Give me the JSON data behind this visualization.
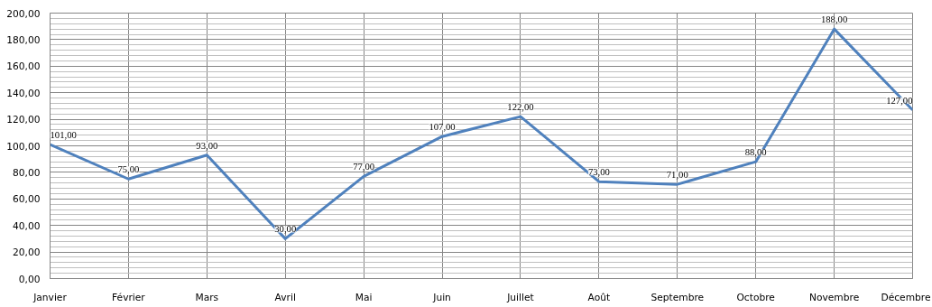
{
  "chart_data": {
    "type": "line",
    "categories": [
      "Janvier",
      "Février",
      "Mars",
      "Avril",
      "Mai",
      "Juin",
      "Juillet",
      "Août",
      "Septembre",
      "Octobre",
      "Novembre",
      "Décembre"
    ],
    "series": [
      {
        "color": "#4f81bd",
        "values": [
          101,
          75,
          93,
          30,
          77,
          107,
          122,
          73,
          71,
          88,
          188,
          127
        ],
        "value_labels": [
          "101,00",
          "75,00",
          "93,00",
          "30,00",
          "77,00",
          "107,00",
          "122,00",
          "73,00",
          "71,00",
          "88,00",
          "188,00",
          "127,00"
        ]
      }
    ],
    "ylim": [
      0,
      200
    ],
    "yticks": [
      {
        "value": 0,
        "label": "0,00"
      },
      {
        "value": 20,
        "label": "20,00"
      },
      {
        "value": 40,
        "label": "40,00"
      },
      {
        "value": 60,
        "label": "60,00"
      },
      {
        "value": 80,
        "label": "80,00"
      },
      {
        "value": 100,
        "label": "100,00"
      },
      {
        "value": 120,
        "label": "120,00"
      },
      {
        "value": 140,
        "label": "140,00"
      },
      {
        "value": 160,
        "label": "160,00"
      },
      {
        "value": 180,
        "label": "180,00"
      },
      {
        "value": 200,
        "label": "200,00"
      }
    ],
    "grid": true,
    "marker": "none",
    "line_style": "solid"
  }
}
